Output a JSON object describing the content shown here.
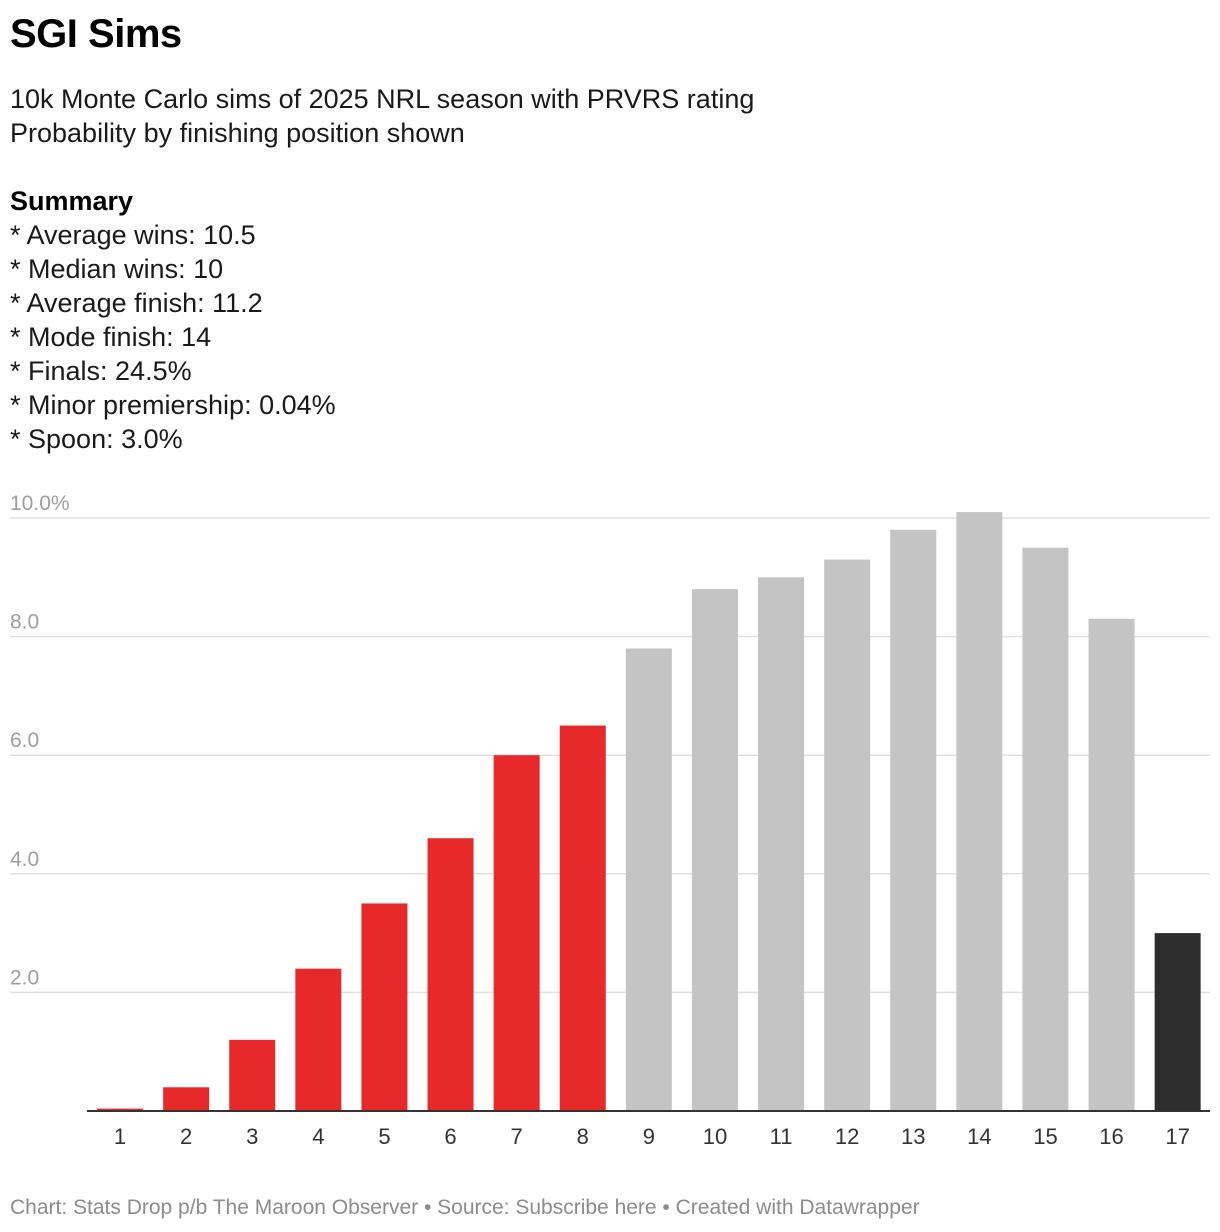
{
  "header": {
    "title": "SGI Sims",
    "subtitle_lines": [
      "10k Monte Carlo sims of 2025 NRL season with PRVRS rating",
      "Probability by finishing position shown"
    ],
    "summary_heading": "Summary",
    "summary_items": [
      "* Average wins: 10.5",
      "* Median wins: 10",
      "* Average finish: 11.2",
      "* Mode finish: 14",
      "* Finals: 24.5%",
      "* Minor premiership: 0.04%",
      "* Spoon: 3.0%"
    ]
  },
  "chart_data": {
    "type": "bar",
    "title": "SGI Sims",
    "xlabel": "",
    "ylabel": "",
    "ylim": [
      0,
      10.5
    ],
    "grid": true,
    "y_ticks": [
      2,
      4,
      6,
      8,
      10
    ],
    "y_tick_labels": [
      "2.0",
      "4.0",
      "6.0",
      "8.0",
      "10.0%"
    ],
    "categories": [
      "1",
      "2",
      "3",
      "4",
      "5",
      "6",
      "7",
      "8",
      "9",
      "10",
      "11",
      "12",
      "13",
      "14",
      "15",
      "16",
      "17"
    ],
    "values": [
      0.04,
      0.4,
      1.2,
      2.4,
      3.5,
      4.6,
      6.0,
      6.5,
      7.8,
      8.8,
      9.0,
      9.3,
      9.8,
      10.1,
      9.5,
      8.3,
      3.0
    ],
    "groups": [
      "finals",
      "finals",
      "finals",
      "finals",
      "finals",
      "finals",
      "finals",
      "finals",
      "other",
      "other",
      "other",
      "other",
      "other",
      "other",
      "other",
      "other",
      "spoon"
    ],
    "colors": {
      "finals": "#e8292a",
      "other": "#c4c4c4",
      "spoon": "#2e2e2e",
      "grid": "#e0e0e0",
      "axis": "#333333",
      "tick_label": "#9e9e9e"
    }
  },
  "footer": {
    "text": "Chart: Stats Drop p/b The Maroon Observer • Source: Subscribe here • Created with Datawrapper"
  }
}
